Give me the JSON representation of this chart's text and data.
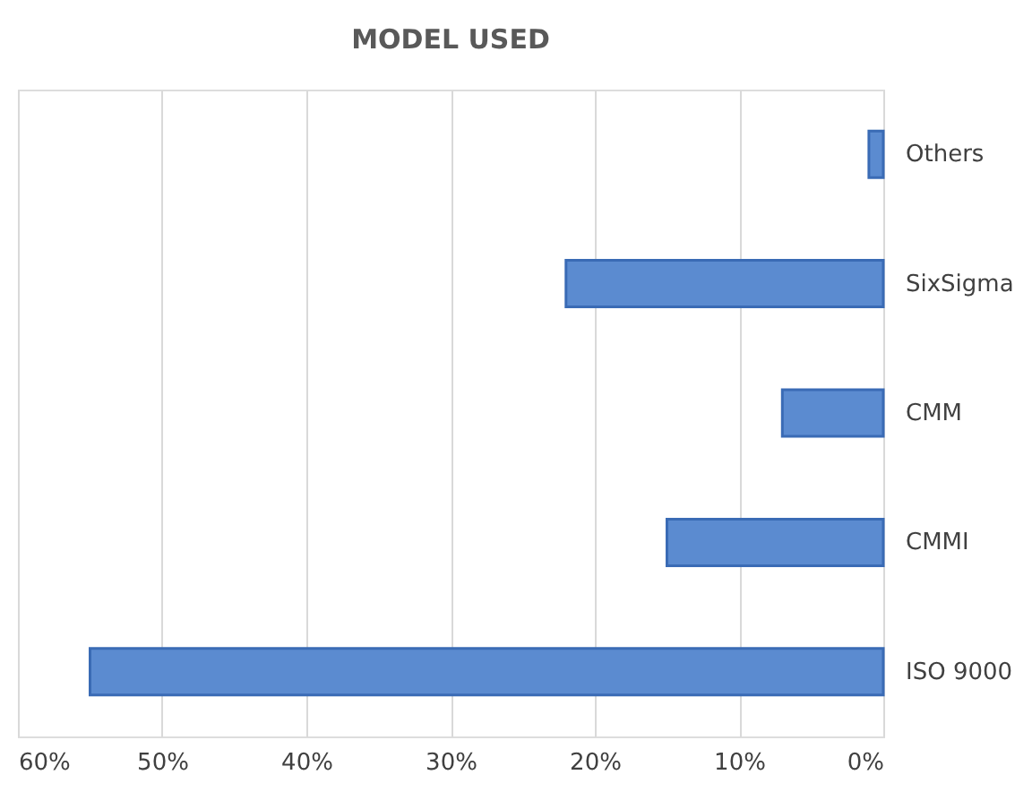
{
  "chart_data": {
    "type": "bar",
    "orientation": "horizontal",
    "title": "MODEL USED",
    "categories": [
      "Others",
      "SixSigma",
      "CMM",
      "CMMI",
      "ISO 9000"
    ],
    "values": [
      1,
      22,
      7,
      15,
      55
    ],
    "color": "#5b8bd0",
    "xlim": [
      60,
      0
    ],
    "xticks": [
      {
        "value": 60,
        "label": "60%"
      },
      {
        "value": 50,
        "label": "50%"
      },
      {
        "value": 40,
        "label": "40%"
      },
      {
        "value": 30,
        "label": "30%"
      },
      {
        "value": 20,
        "label": "20%"
      },
      {
        "value": 10,
        "label": "10%"
      },
      {
        "value": 0,
        "label": "0%"
      }
    ],
    "grid": "x"
  }
}
